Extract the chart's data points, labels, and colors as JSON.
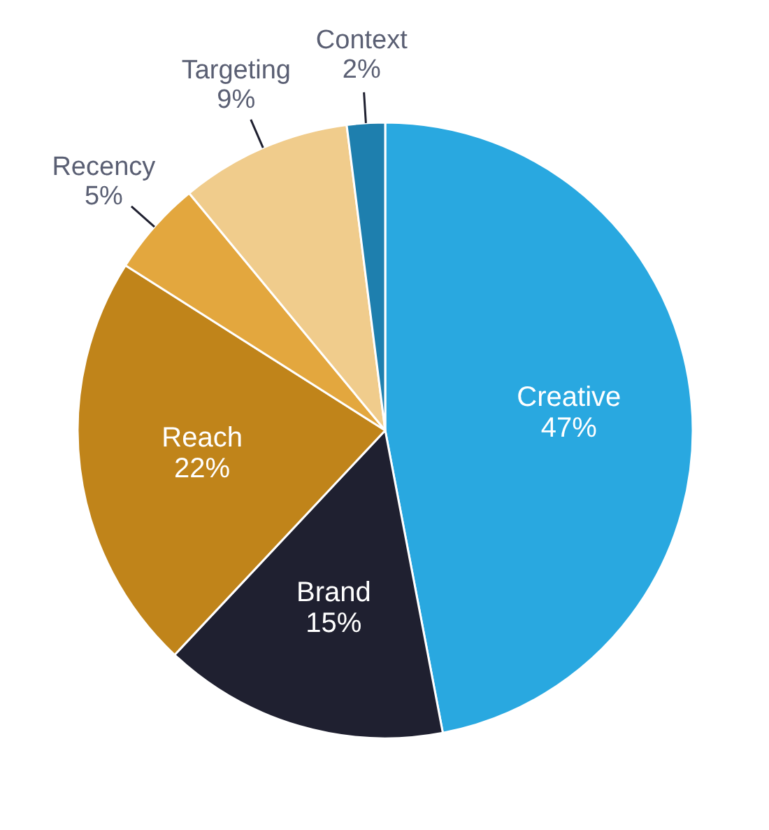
{
  "chart_data": {
    "type": "pie",
    "categories": [
      "Creative",
      "Brand",
      "Reach",
      "Recency",
      "Targeting",
      "Context"
    ],
    "values": [
      47,
      15,
      22,
      5,
      9,
      2
    ],
    "value_labels": [
      "47%",
      "15%",
      "22%",
      "5%",
      "9%",
      "2%"
    ],
    "colors": [
      "#29a8e0",
      "#1f2030",
      "#c0841a",
      "#e3a73e",
      "#f0cc8c",
      "#1e7fae"
    ]
  }
}
